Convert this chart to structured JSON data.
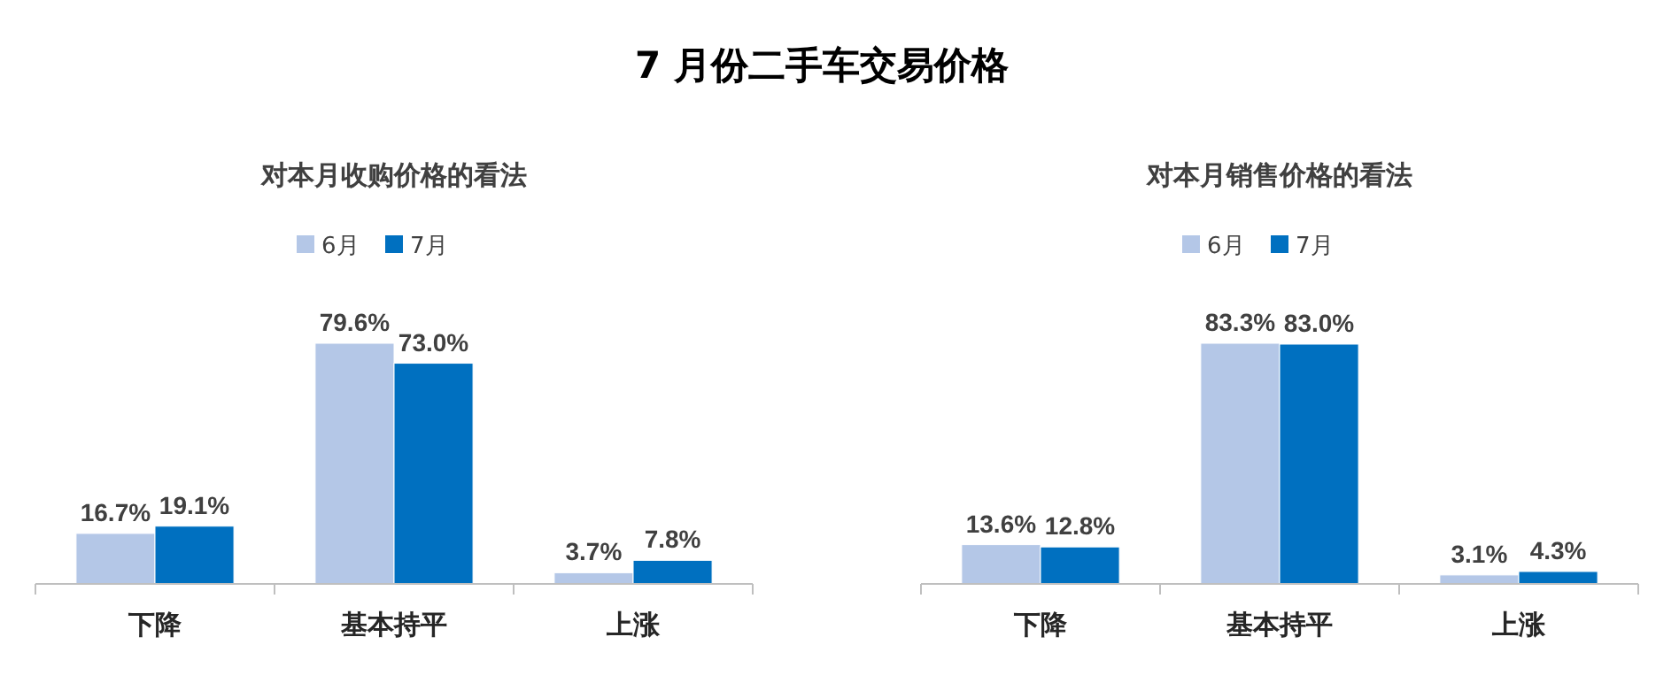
{
  "chart_data": [
    {
      "type": "bar",
      "title": "7 月份二手车交易价格",
      "subtitle": "对本月收购价格的看法",
      "categories": [
        "下降",
        "基本持平",
        "上涨"
      ],
      "series": [
        {
          "name": "6月",
          "color": "#b4c7e7",
          "values": [
            16.7,
            79.6,
            3.7
          ],
          "value_labels": [
            "16.7%",
            "79.6%",
            "3.7%"
          ]
        },
        {
          "name": "7月",
          "color": "#0070c0",
          "values": [
            19.1,
            73.0,
            7.8
          ],
          "value_labels": [
            "19.1%",
            "73.0%",
            "7.8%"
          ]
        }
      ],
      "legend": "top",
      "grid": false
    },
    {
      "type": "bar",
      "subtitle": "对本月销售价格的看法",
      "categories": [
        "下降",
        "基本持平",
        "上涨"
      ],
      "series": [
        {
          "name": "6月",
          "color": "#b4c7e7",
          "values": [
            13.6,
            83.3,
            3.1
          ],
          "value_labels": [
            "13.6%",
            "83.3%",
            "3.1%"
          ]
        },
        {
          "name": "7月",
          "color": "#0070c0",
          "values": [
            12.8,
            83.0,
            4.3
          ],
          "value_labels": [
            "12.8%",
            "83.0%",
            "4.3%"
          ]
        }
      ],
      "legend": "top",
      "grid": false
    }
  ]
}
